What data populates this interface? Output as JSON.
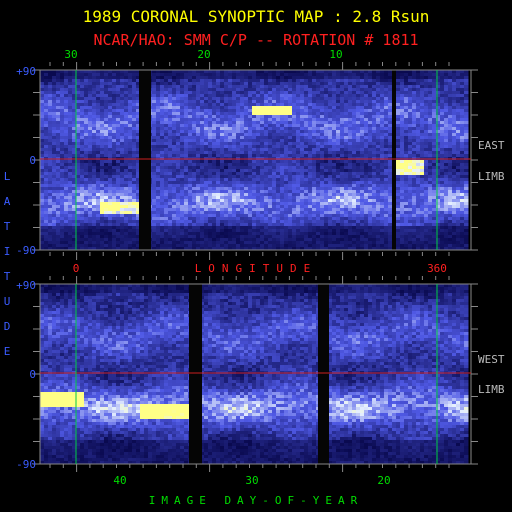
{
  "chart_data": [
    {
      "type": "heatmap",
      "title": "1989 CORONAL SYNOPTIC MAP : 2.8 Rsun",
      "subtitle": "NCAR/HAO: SMM C/P -- ROTATION # 1811",
      "panel": "east-limb",
      "limb_label_top": "EAST",
      "limb_label_bottom": "LIMB",
      "ylabel": "LATITUDE",
      "ylim": [
        -90,
        90
      ],
      "y_ticks": [
        "+90",
        "0",
        "-90"
      ],
      "xlabel": "LONGITUDE",
      "xlim": [
        0,
        360
      ],
      "x_ticks_bottom": [
        "0",
        "360"
      ],
      "x_ticks_top_label": "",
      "secondary_ticks": [
        "30",
        "20",
        "10"
      ],
      "grid": false,
      "colors": {
        "background": "#000000",
        "map_low": "#0a0a55",
        "map_mid": "#5a66d8",
        "map_high": "#ffff9a"
      }
    },
    {
      "type": "heatmap",
      "panel": "west-limb",
      "limb_label_top": "WEST",
      "limb_label_bottom": "LIMB",
      "ylim": [
        -90,
        90
      ],
      "y_ticks": [
        "+90",
        "0",
        "-90"
      ],
      "xlabel": "IMAGE DAY-OF-YEAR",
      "x_ticks_bottom": [
        "40",
        "30",
        "20"
      ],
      "grid": false
    }
  ],
  "colors": {
    "title": "#ffff00",
    "subtitle": "#ff2020",
    "axis_text": "#3a5cff",
    "tick_green": "#00dd00",
    "tick_red": "#ff2020",
    "equator": "#cc2020",
    "marker": "#00cc44",
    "frame": "#888888"
  },
  "labels": {
    "title": "1989 CORONAL SYNOPTIC MAP : 2.8 Rsun",
    "subtitle": "NCAR/HAO: SMM C/P -- ROTATION # 1811",
    "p1_top_ticks": [
      "30",
      "20",
      "10"
    ],
    "lat_labels": [
      "+90",
      "0",
      "-90"
    ],
    "p1_bottom_ticks": [
      "0",
      "360"
    ],
    "longitude": "LONGITUDE",
    "latitude": "LATITUDE",
    "east_top": "EAST",
    "east_bottom": "LIMB",
    "west_top": "WEST",
    "west_bottom": "LIMB",
    "p2_bottom_ticks": [
      "40",
      "30",
      "20"
    ],
    "day_of_year": "IMAGE DAY-OF-YEAR"
  }
}
